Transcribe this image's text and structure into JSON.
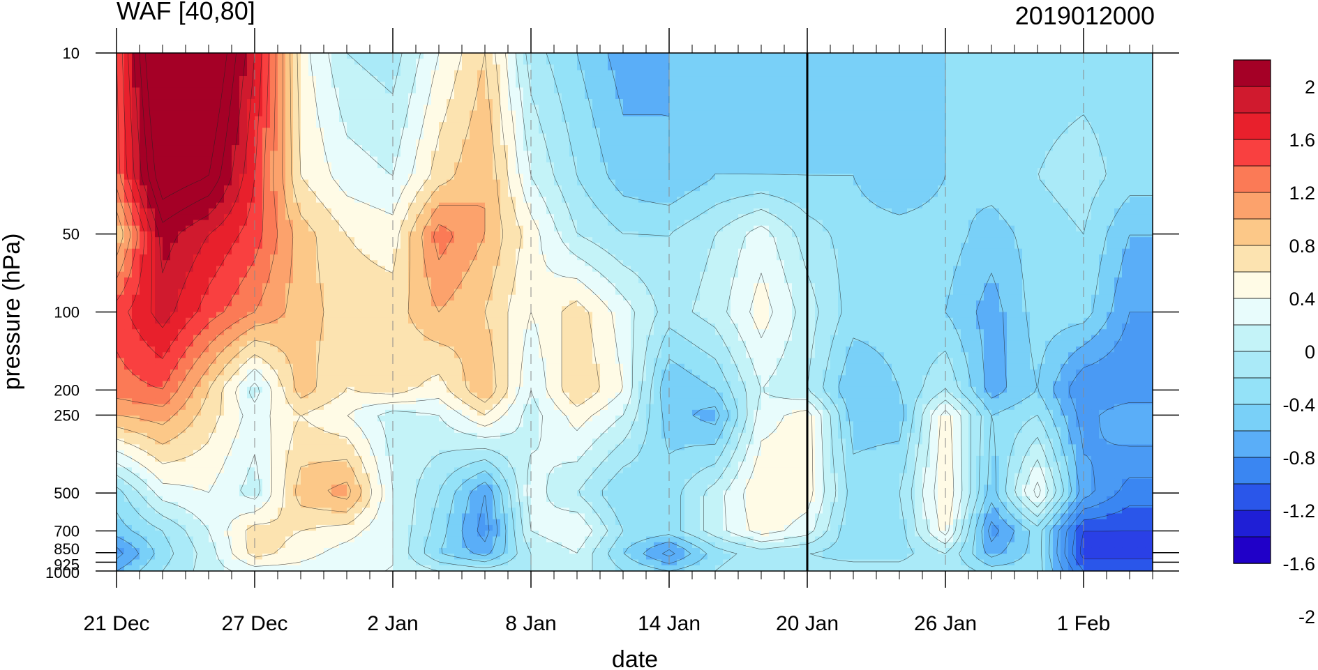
{
  "chart_data": {
    "type": "heatmap",
    "title_left": "WAF [40,80]",
    "title_right": "2019012000",
    "xlabel": "date",
    "ylabel": "pressure (hPa)",
    "x_ticks": [
      {
        "label": "21 Dec",
        "day": 0
      },
      {
        "label": "27 Dec",
        "day": 6
      },
      {
        "label": "2 Jan",
        "day": 12
      },
      {
        "label": "8 Jan",
        "day": 18
      },
      {
        "label": "14 Jan",
        "day": 24
      },
      {
        "label": "20 Jan",
        "day": 30
      },
      {
        "label": "26 Jan",
        "day": 36
      },
      {
        "label": "1 Feb",
        "day": 42
      }
    ],
    "x_range_days": [
      0,
      45
    ],
    "y_scale": "log",
    "y_range_hPa": [
      1000,
      10
    ],
    "y_ticks": [
      {
        "label": "10",
        "p": 10
      },
      {
        "label": "50",
        "p": 50
      },
      {
        "label": "100",
        "p": 100
      },
      {
        "label": "200",
        "p": 200
      },
      {
        "label": "250",
        "p": 250
      },
      {
        "label": "500",
        "p": 500
      },
      {
        "label": "700",
        "p": 700
      },
      {
        "label": "850",
        "p": 850
      },
      {
        "label": "925",
        "p": 925
      },
      {
        "label": "1000",
        "p": 1000
      }
    ],
    "vertical_marker_day": 30,
    "colorbar_labels": [
      "2",
      "1.6",
      "1.2",
      "0.8",
      "0.4",
      "0",
      "-0.4",
      "-0.8",
      "-1.2",
      "-1.6",
      "-2"
    ],
    "colorbar_colors": [
      "#a50026",
      "#d01a2e",
      "#e8202c",
      "#f94040",
      "#fb7a56",
      "#fca26c",
      "#fcc888",
      "#fce3b0",
      "#fffbe6",
      "#e8fcfc",
      "#c4f3f8",
      "#aaeaf8",
      "#94e2f8",
      "#79d0f8",
      "#5aaef8",
      "#3a86f2",
      "#2a56ea",
      "#1f1fd6",
      "#2000c8"
    ],
    "levels": [
      -2.2,
      -2,
      -1.8,
      -1.6,
      -1.4,
      -1.2,
      -1,
      -0.8,
      -0.6,
      -0.4,
      -0.2,
      0,
      0.2,
      0.4,
      0.6,
      0.8,
      1,
      1.2,
      1.4,
      1.6,
      1.8,
      2,
      2.2
    ],
    "fill_colors": [
      "#2000c8",
      "#1f1fd6",
      "#2a40e6",
      "#2a56ea",
      "#3a86f2",
      "#4a9af4",
      "#5aaef8",
      "#79d0f8",
      "#94e2f8",
      "#aaeaf8",
      "#c4f3f8",
      "#e8fcfc",
      "#fffbe6",
      "#fce3b0",
      "#fcc888",
      "#fca26c",
      "#fb7a56",
      "#f94040",
      "#e8202c",
      "#d01a2e",
      "#a50026",
      "#a50026"
    ],
    "z_rows_pressure_hPa": [
      10,
      30,
      50,
      100,
      200,
      250,
      500,
      700,
      850,
      1000
    ],
    "z_cols_day": [
      0,
      2,
      4,
      6,
      8,
      10,
      12,
      14,
      16,
      18,
      20,
      22,
      24,
      26,
      28,
      30,
      32,
      34,
      36,
      38,
      40,
      42,
      44
    ],
    "z": [
      [
        1.2,
        2.8,
        2.6,
        1.6,
        0.3,
        -0.2,
        -0.3,
        0.2,
        0.6,
        -0.3,
        -0.6,
        -0.9,
        -0.8,
        -0.6,
        -0.7,
        -0.8,
        -0.7,
        -0.7,
        -0.6,
        -0.5,
        -0.5,
        -0.5,
        -0.5
      ],
      [
        1.1,
        2.4,
        2.2,
        1.4,
        0.4,
        0.1,
        0.0,
        0.5,
        0.8,
        0.0,
        -0.4,
        -0.7,
        -0.8,
        -0.6,
        -0.6,
        -0.6,
        -0.6,
        -0.8,
        -0.6,
        -0.5,
        -0.4,
        -0.3,
        -0.5
      ],
      [
        0.6,
        1.9,
        1.6,
        1.3,
        0.7,
        0.4,
        0.3,
        1.1,
        0.8,
        0.3,
        -0.2,
        -0.4,
        -0.4,
        -0.2,
        0.1,
        -0.3,
        -0.5,
        -0.5,
        -0.5,
        -0.7,
        -0.5,
        -0.4,
        -0.8
      ],
      [
        1.3,
        1.7,
        1.3,
        1.0,
        0.7,
        0.5,
        0.5,
        0.8,
        0.6,
        0.2,
        0.5,
        0.1,
        -0.3,
        -0.1,
        0.3,
        -0.1,
        -0.5,
        -0.5,
        -0.6,
        -0.9,
        -0.5,
        -0.5,
        -1.0
      ],
      [
        1.1,
        1.2,
        0.6,
        -0.1,
        0.7,
        0.4,
        0.5,
        0.3,
        0.8,
        0.0,
        0.6,
        0.2,
        -0.8,
        -0.6,
        0.0,
        -0.2,
        -0.8,
        -0.6,
        -0.2,
        -0.9,
        -0.6,
        -1.2,
        -1.2
      ],
      [
        0.8,
        0.9,
        0.5,
        0.1,
        0.4,
        0.2,
        -0.1,
        0.0,
        0.4,
        -0.1,
        0.3,
        0.0,
        -0.7,
        -0.9,
        0.1,
        0.3,
        -0.7,
        -0.7,
        0.3,
        -0.6,
        -0.4,
        -1.1,
        -0.8
      ],
      [
        -0.5,
        0.1,
        0.2,
        -0.1,
        0.7,
        0.9,
        0.0,
        -0.4,
        -1.0,
        0.1,
        -0.2,
        -0.6,
        -0.5,
        -0.1,
        0.4,
        0.3,
        -0.5,
        -0.4,
        0.4,
        -0.7,
        0.3,
        -0.9,
        -1.3
      ],
      [
        -0.7,
        -0.4,
        0.0,
        0.5,
        0.4,
        0.3,
        0.0,
        -0.5,
        -1.1,
        0.0,
        0.2,
        -0.4,
        -0.5,
        -0.1,
        0.3,
        0.1,
        -0.6,
        -0.5,
        0.3,
        -1.1,
        -0.5,
        -1.6,
        -1.6
      ],
      [
        -1.1,
        -0.5,
        -0.1,
        0.5,
        0.3,
        0.1,
        0.0,
        -0.6,
        -0.9,
        -0.2,
        0.0,
        -0.6,
        -1.1,
        -0.5,
        -0.3,
        -0.4,
        -0.5,
        -0.5,
        -0.2,
        -0.9,
        -0.5,
        -1.7,
        -1.7
      ],
      [
        -0.8,
        -0.4,
        -0.1,
        0.1,
        0.1,
        0.0,
        0.0,
        -0.2,
        -0.3,
        -0.2,
        -0.1,
        -0.4,
        -0.6,
        -0.4,
        -0.2,
        -0.3,
        -0.3,
        -0.3,
        -0.2,
        -0.5,
        -0.5,
        -1.4,
        -1.4
      ]
    ]
  }
}
